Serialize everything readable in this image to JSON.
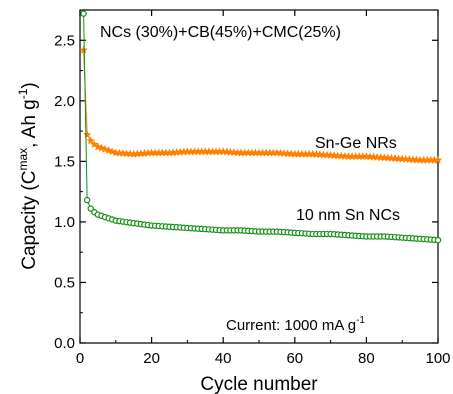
{
  "chart_data": {
    "type": "scatter",
    "title": "NCs (30%)+CB(45%)+CMC(25%)",
    "xlabel": "Cycle number",
    "ylabel_parts": {
      "pre": "Capacity (C",
      "sup": "max",
      "mid": ",  Ah g",
      "sup2": "-1",
      "post": ")"
    },
    "xlim": [
      0,
      100
    ],
    "ylim": [
      0.0,
      2.75
    ],
    "x_ticks": [
      "0",
      "20",
      "40",
      "60",
      "80",
      "100"
    ],
    "y_ticks": [
      "0.0",
      "0.5",
      "1.0",
      "1.5",
      "2.0",
      "2.5"
    ],
    "annotation": {
      "pre": "Current: 1000 mA g",
      "sup": "-1"
    },
    "grid": false,
    "series": [
      {
        "name": "Sn-Ge NRs",
        "color": "#FF8000",
        "marker": "star",
        "x": [
          1,
          2,
          3,
          4,
          5,
          6,
          8,
          10,
          15,
          20,
          25,
          30,
          35,
          40,
          45,
          50,
          55,
          60,
          65,
          70,
          75,
          80,
          85,
          90,
          95,
          100
        ],
        "y": [
          2.42,
          1.72,
          1.67,
          1.64,
          1.62,
          1.61,
          1.59,
          1.57,
          1.56,
          1.57,
          1.57,
          1.58,
          1.58,
          1.58,
          1.57,
          1.57,
          1.57,
          1.56,
          1.56,
          1.55,
          1.54,
          1.54,
          1.53,
          1.52,
          1.51,
          1.51
        ]
      },
      {
        "name": "10 nm Sn NCs",
        "color": "#109010",
        "marker": "circle",
        "x": [
          1,
          2,
          3,
          4,
          5,
          6,
          8,
          10,
          15,
          20,
          25,
          30,
          35,
          40,
          45,
          50,
          55,
          60,
          65,
          70,
          75,
          80,
          85,
          90,
          95,
          100
        ],
        "y": [
          2.72,
          1.18,
          1.11,
          1.08,
          1.06,
          1.05,
          1.03,
          1.01,
          0.99,
          0.97,
          0.96,
          0.95,
          0.94,
          0.93,
          0.93,
          0.92,
          0.92,
          0.91,
          0.9,
          0.9,
          0.89,
          0.88,
          0.88,
          0.87,
          0.86,
          0.85
        ]
      }
    ]
  }
}
